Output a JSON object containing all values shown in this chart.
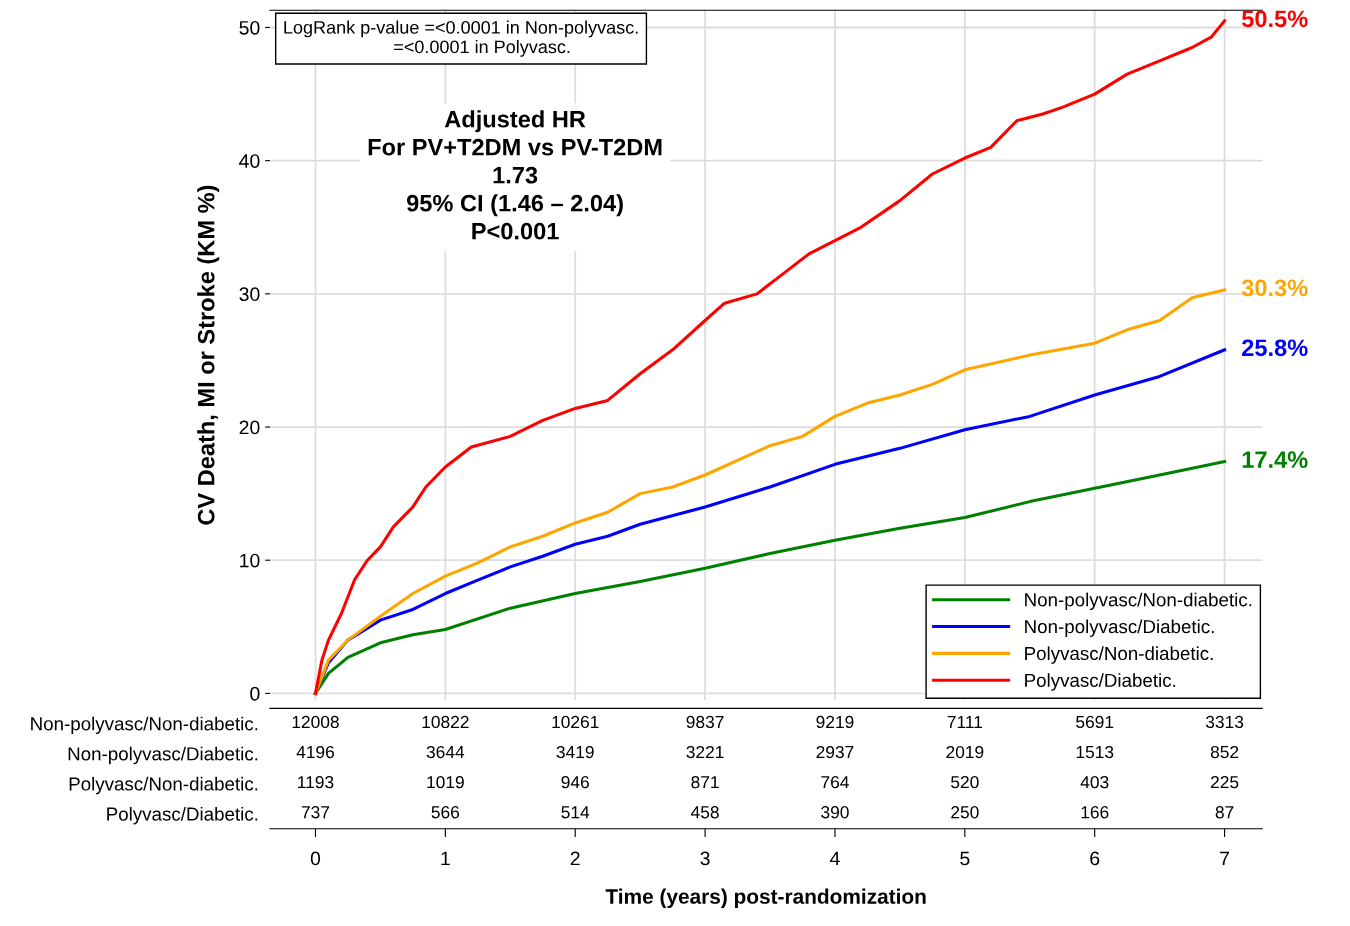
{
  "chart_data": [
    {
      "type": "line",
      "ylabel": "CV Death, MI or Stroke (KM %)",
      "xlim": [
        -0.35,
        7.29
      ],
      "ylim": [
        -0.5,
        51.3
      ],
      "yticks": [
        0,
        10,
        20,
        30,
        40,
        50
      ],
      "xticks": [
        0,
        1,
        2,
        3,
        4,
        5,
        6,
        7
      ],
      "tick_labels": "y",
      "grid": true,
      "legend": "bottom right",
      "line_style": "solid",
      "marker": "none",
      "series": [
        {
          "name": "Non-polyvasc/Non-diabetic.",
          "color": "#008000",
          "x": [
            0,
            0.1,
            0.25,
            0.5,
            0.75,
            1,
            1.5,
            2,
            2.5,
            3,
            3.5,
            4,
            4.5,
            5,
            5.5,
            6,
            6.5,
            7
          ],
          "values": [
            0,
            1.5,
            2.7,
            3.8,
            4.4,
            4.8,
            6.4,
            7.5,
            8.4,
            9.4,
            10.5,
            11.5,
            12.4,
            13.2,
            14.4,
            15.4,
            16.4,
            17.4
          ]
        },
        {
          "name": "Non-polyvasc/Diabetic.",
          "color": "#0000ff",
          "x": [
            0,
            0.1,
            0.25,
            0.5,
            0.75,
            1,
            1.25,
            1.5,
            1.75,
            2,
            2.25,
            2.5,
            3,
            3.5,
            4,
            4.5,
            5,
            5.5,
            6,
            6.5,
            7
          ],
          "values": [
            0,
            2.3,
            4,
            5.5,
            6.3,
            7.5,
            8.5,
            9.5,
            10.3,
            11.2,
            11.8,
            12.7,
            14,
            15.5,
            17.2,
            18.4,
            19.8,
            20.8,
            22.4,
            23.8,
            25.8
          ]
        },
        {
          "name": "Polyvasc/Non-diabetic.",
          "color": "#ffa500",
          "x": [
            0,
            0.1,
            0.25,
            0.5,
            0.75,
            1,
            1.25,
            1.5,
            1.75,
            2,
            2.25,
            2.5,
            2.75,
            3,
            3.25,
            3.5,
            3.75,
            4,
            4.25,
            4.5,
            4.75,
            5,
            5.5,
            6,
            6.25,
            6.5,
            6.75,
            7
          ],
          "values": [
            0,
            2.5,
            4,
            5.8,
            7.5,
            8.8,
            9.8,
            11,
            11.8,
            12.8,
            13.6,
            15,
            15.5,
            16.4,
            17.5,
            18.6,
            19.3,
            20.8,
            21.8,
            22.4,
            23.2,
            24.3,
            25.4,
            26.3,
            27.3,
            28,
            29.7,
            30.3
          ]
        },
        {
          "name": "Polyvasc/Diabetic.",
          "color": "#ff0000",
          "x": [
            0,
            0.05,
            0.1,
            0.2,
            0.3,
            0.4,
            0.5,
            0.6,
            0.75,
            0.85,
            1,
            1.2,
            1.5,
            1.75,
            2,
            2.25,
            2.5,
            2.75,
            3,
            3.15,
            3.4,
            3.6,
            3.8,
            4,
            4.2,
            4.5,
            4.75,
            5,
            5.2,
            5.4,
            5.6,
            5.75,
            6,
            6.25,
            6.5,
            6.75,
            6.9,
            7
          ],
          "values": [
            0,
            2.5,
            4,
            6,
            8.5,
            10,
            11,
            12.5,
            14,
            15.5,
            17,
            18.5,
            19.3,
            20.5,
            21.4,
            22,
            24,
            25.8,
            28,
            29.3,
            30,
            31.5,
            33,
            34,
            35,
            37,
            39,
            40.2,
            41,
            43,
            43.5,
            44,
            45,
            46.5,
            47.5,
            48.5,
            49.3,
            50.5
          ]
        }
      ],
      "annotations": [
        "LogRank p-value =<0.0001 in Non-polyvasc.\n                      =<0.0001 in Polyvasc.",
        "Adjusted HR\nFor PV+T2DM vs PV-T2DM\n1.73\n95% CI (1.46 – 2.04)\nP<0.001",
        "17.4%",
        "25.8%",
        "30.3%",
        "50.5%"
      ]
    },
    {
      "type": "heatmap",
      "data_labels": true,
      "xlabel": "Time (years) post-randomization",
      "categories": [
        "0",
        "1",
        "2",
        "3",
        "4",
        "5",
        "6",
        "7"
      ],
      "y_categories": [
        "Non-polyvasc/Non-diabetic.",
        "Non-polyvasc/Diabetic.",
        "Polyvasc/Non-diabetic.",
        "Polyvasc/Diabetic."
      ],
      "cells": [
        [
          12008,
          10822,
          10261,
          9837,
          9219,
          7111,
          5691,
          3313
        ],
        [
          4196,
          3644,
          3419,
          3221,
          2937,
          2019,
          1513,
          852
        ],
        [
          1193,
          1019,
          946,
          871,
          764,
          520,
          403,
          225
        ],
        [
          737,
          566,
          514,
          458,
          390,
          250,
          166,
          87
        ]
      ]
    }
  ]
}
